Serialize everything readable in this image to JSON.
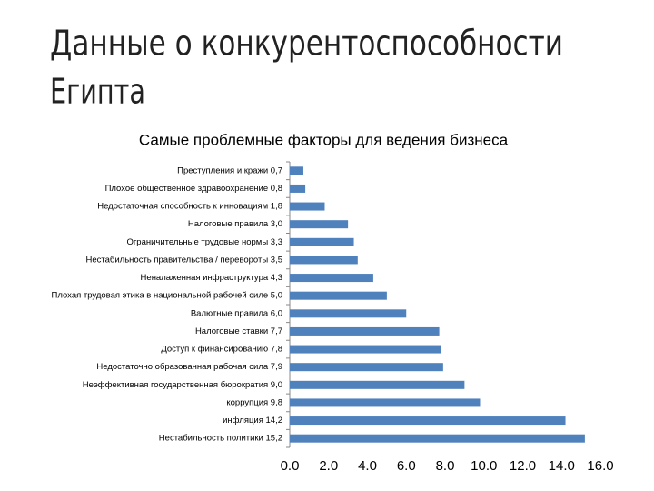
{
  "slide": {
    "title_lines": [
      "Данные о конкурентоспособности",
      "Египта"
    ]
  },
  "chart_data": {
    "type": "hbar",
    "title": "Самые проблемные факторы для ведения бизнеса",
    "categories": [
      "Преступления и кражи 0,7",
      "Плохое общественное здравоохранение 0,8",
      "Недостаточная способность к инновациям 1,8",
      "Налоговые правила 3,0",
      "Ограничительные трудовые нормы 3,3",
      "Нестабильность правительства / перевороты 3,5",
      "Неналаженная инфраструктура 4,3",
      "Плохая трудовая этика в национальной рабочей силе 5,0",
      "Валютные правила 6,0",
      "Налоговые ставки 7,7",
      "Доступ к финансированию 7,8",
      "Недостаточно образованная рабочая сила 7,9",
      "Неэффективная государственная бюрократия 9,0",
      "коррупция 9,8",
      "инфляция 14,2",
      "Нестабильность политики 15,2"
    ],
    "values": [
      0.7,
      0.8,
      1.8,
      3.0,
      3.3,
      3.5,
      4.3,
      5.0,
      6.0,
      7.7,
      7.8,
      7.9,
      9.0,
      9.8,
      14.2,
      15.2
    ],
    "color": "#4f81bd",
    "xlim": [
      0,
      16
    ],
    "xticks": [
      {
        "value": 0,
        "label": "0.0"
      },
      {
        "value": 2,
        "label": "2.0"
      },
      {
        "value": 4,
        "label": "4.0"
      },
      {
        "value": 6,
        "label": "6.0"
      },
      {
        "value": 8,
        "label": "8.0"
      },
      {
        "value": 10,
        "label": "10.0"
      },
      {
        "value": 12,
        "label": "12.0"
      },
      {
        "value": 14,
        "label": "14.0"
      },
      {
        "value": 16,
        "label": "16.0"
      }
    ]
  }
}
